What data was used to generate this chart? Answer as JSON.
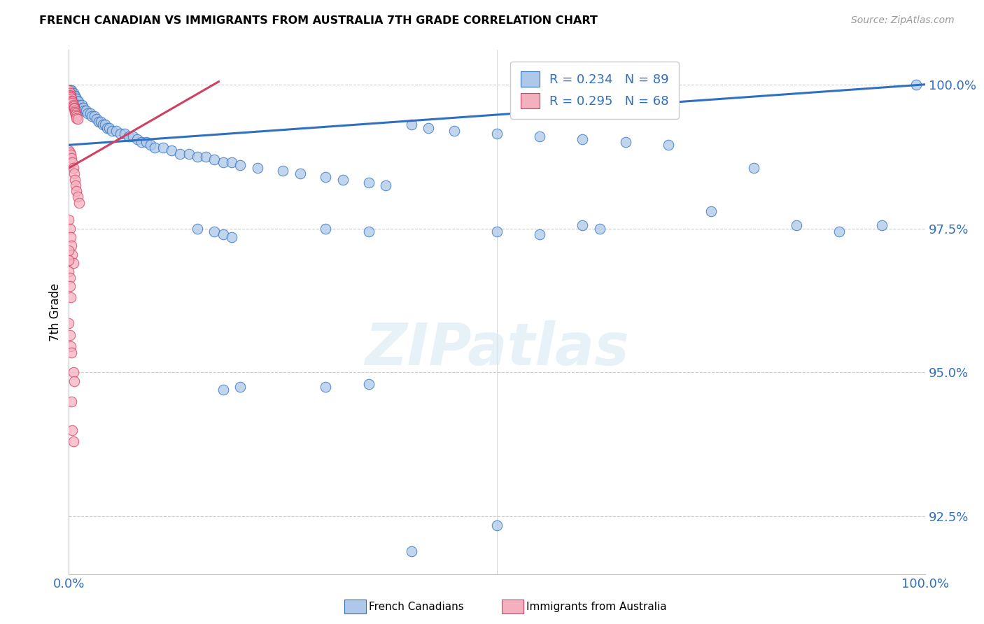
{
  "title": "FRENCH CANADIAN VS IMMIGRANTS FROM AUSTRALIA 7TH GRADE CORRELATION CHART",
  "source": "Source: ZipAtlas.com",
  "ylabel": "7th Grade",
  "y_ticks": [
    92.5,
    95.0,
    97.5,
    100.0
  ],
  "blue_R": 0.234,
  "blue_N": 89,
  "pink_R": 0.295,
  "pink_N": 68,
  "blue_color": "#adc8e8",
  "pink_color": "#f5b0c0",
  "blue_line_color": "#3070c0",
  "pink_line_color": "#d04060",
  "watermark_text": "ZIPatlas",
  "xlim": [
    0.0,
    1.0
  ],
  "ylim": [
    91.5,
    100.6
  ],
  "blue_line": [
    [
      0.0,
      98.95
    ],
    [
      1.0,
      100.0
    ]
  ],
  "pink_line": [
    [
      0.0,
      98.55
    ],
    [
      0.175,
      100.05
    ]
  ],
  "blue_scatter": [
    [
      0.001,
      99.9
    ],
    [
      0.002,
      99.9
    ],
    [
      0.003,
      99.9
    ],
    [
      0.004,
      99.85
    ],
    [
      0.005,
      99.85
    ],
    [
      0.006,
      99.8
    ],
    [
      0.007,
      99.8
    ],
    [
      0.008,
      99.75
    ],
    [
      0.009,
      99.75
    ],
    [
      0.01,
      99.7
    ],
    [
      0.011,
      99.7
    ],
    [
      0.012,
      99.65
    ],
    [
      0.015,
      99.65
    ],
    [
      0.016,
      99.6
    ],
    [
      0.017,
      99.6
    ],
    [
      0.018,
      99.55
    ],
    [
      0.02,
      99.55
    ],
    [
      0.022,
      99.5
    ],
    [
      0.025,
      99.5
    ],
    [
      0.027,
      99.45
    ],
    [
      0.03,
      99.45
    ],
    [
      0.032,
      99.4
    ],
    [
      0.035,
      99.35
    ],
    [
      0.037,
      99.35
    ],
    [
      0.04,
      99.3
    ],
    [
      0.042,
      99.3
    ],
    [
      0.045,
      99.25
    ],
    [
      0.047,
      99.25
    ],
    [
      0.05,
      99.2
    ],
    [
      0.055,
      99.2
    ],
    [
      0.06,
      99.15
    ],
    [
      0.065,
      99.15
    ],
    [
      0.07,
      99.1
    ],
    [
      0.075,
      99.1
    ],
    [
      0.08,
      99.05
    ],
    [
      0.085,
      99.0
    ],
    [
      0.09,
      99.0
    ],
    [
      0.095,
      98.95
    ],
    [
      0.1,
      98.9
    ],
    [
      0.11,
      98.9
    ],
    [
      0.12,
      98.85
    ],
    [
      0.13,
      98.8
    ],
    [
      0.14,
      98.8
    ],
    [
      0.15,
      98.75
    ],
    [
      0.16,
      98.75
    ],
    [
      0.17,
      98.7
    ],
    [
      0.18,
      98.65
    ],
    [
      0.19,
      98.65
    ],
    [
      0.2,
      98.6
    ],
    [
      0.22,
      98.55
    ],
    [
      0.25,
      98.5
    ],
    [
      0.27,
      98.45
    ],
    [
      0.3,
      98.4
    ],
    [
      0.32,
      98.35
    ],
    [
      0.35,
      98.3
    ],
    [
      0.37,
      98.25
    ],
    [
      0.4,
      99.3
    ],
    [
      0.42,
      99.25
    ],
    [
      0.45,
      99.2
    ],
    [
      0.5,
      99.15
    ],
    [
      0.55,
      99.1
    ],
    [
      0.6,
      99.05
    ],
    [
      0.65,
      99.0
    ],
    [
      0.7,
      98.95
    ],
    [
      0.15,
      97.5
    ],
    [
      0.17,
      97.45
    ],
    [
      0.18,
      97.4
    ],
    [
      0.19,
      97.35
    ],
    [
      0.3,
      97.5
    ],
    [
      0.35,
      97.45
    ],
    [
      0.5,
      97.45
    ],
    [
      0.55,
      97.4
    ],
    [
      0.6,
      97.55
    ],
    [
      0.62,
      97.5
    ],
    [
      0.75,
      97.8
    ],
    [
      0.8,
      98.55
    ],
    [
      0.85,
      97.55
    ],
    [
      0.9,
      97.45
    ],
    [
      0.95,
      97.55
    ],
    [
      0.99,
      100.0
    ],
    [
      0.18,
      94.7
    ],
    [
      0.2,
      94.75
    ],
    [
      0.3,
      94.75
    ],
    [
      0.35,
      94.8
    ],
    [
      0.4,
      91.9
    ],
    [
      0.5,
      92.35
    ]
  ],
  "pink_scatter": [
    [
      0.0,
      99.9
    ],
    [
      0.001,
      99.85
    ],
    [
      0.001,
      99.82
    ],
    [
      0.002,
      99.8
    ],
    [
      0.002,
      99.78
    ],
    [
      0.003,
      99.75
    ],
    [
      0.003,
      99.72
    ],
    [
      0.004,
      99.7
    ],
    [
      0.004,
      99.68
    ],
    [
      0.005,
      99.65
    ],
    [
      0.005,
      99.62
    ],
    [
      0.006,
      99.6
    ],
    [
      0.006,
      99.58
    ],
    [
      0.007,
      99.55
    ],
    [
      0.007,
      99.52
    ],
    [
      0.008,
      99.5
    ],
    [
      0.008,
      99.47
    ],
    [
      0.009,
      99.45
    ],
    [
      0.009,
      99.42
    ],
    [
      0.01,
      99.4
    ],
    [
      0.0,
      98.85
    ],
    [
      0.001,
      98.82
    ],
    [
      0.002,
      98.78
    ],
    [
      0.003,
      98.72
    ],
    [
      0.004,
      98.65
    ],
    [
      0.005,
      98.55
    ],
    [
      0.006,
      98.45
    ],
    [
      0.007,
      98.35
    ],
    [
      0.008,
      98.25
    ],
    [
      0.009,
      98.15
    ],
    [
      0.01,
      98.05
    ],
    [
      0.012,
      97.95
    ],
    [
      0.0,
      97.65
    ],
    [
      0.001,
      97.5
    ],
    [
      0.002,
      97.35
    ],
    [
      0.003,
      97.2
    ],
    [
      0.004,
      97.05
    ],
    [
      0.005,
      96.9
    ],
    [
      0.0,
      97.12
    ],
    [
      0.0,
      96.95
    ],
    [
      0.0,
      96.75
    ],
    [
      0.001,
      96.65
    ],
    [
      0.001,
      96.5
    ],
    [
      0.002,
      96.3
    ],
    [
      0.0,
      95.85
    ],
    [
      0.001,
      95.65
    ],
    [
      0.002,
      95.45
    ],
    [
      0.003,
      95.35
    ],
    [
      0.005,
      95.0
    ],
    [
      0.006,
      94.85
    ],
    [
      0.003,
      94.5
    ],
    [
      0.004,
      94.0
    ],
    [
      0.005,
      93.8
    ]
  ]
}
